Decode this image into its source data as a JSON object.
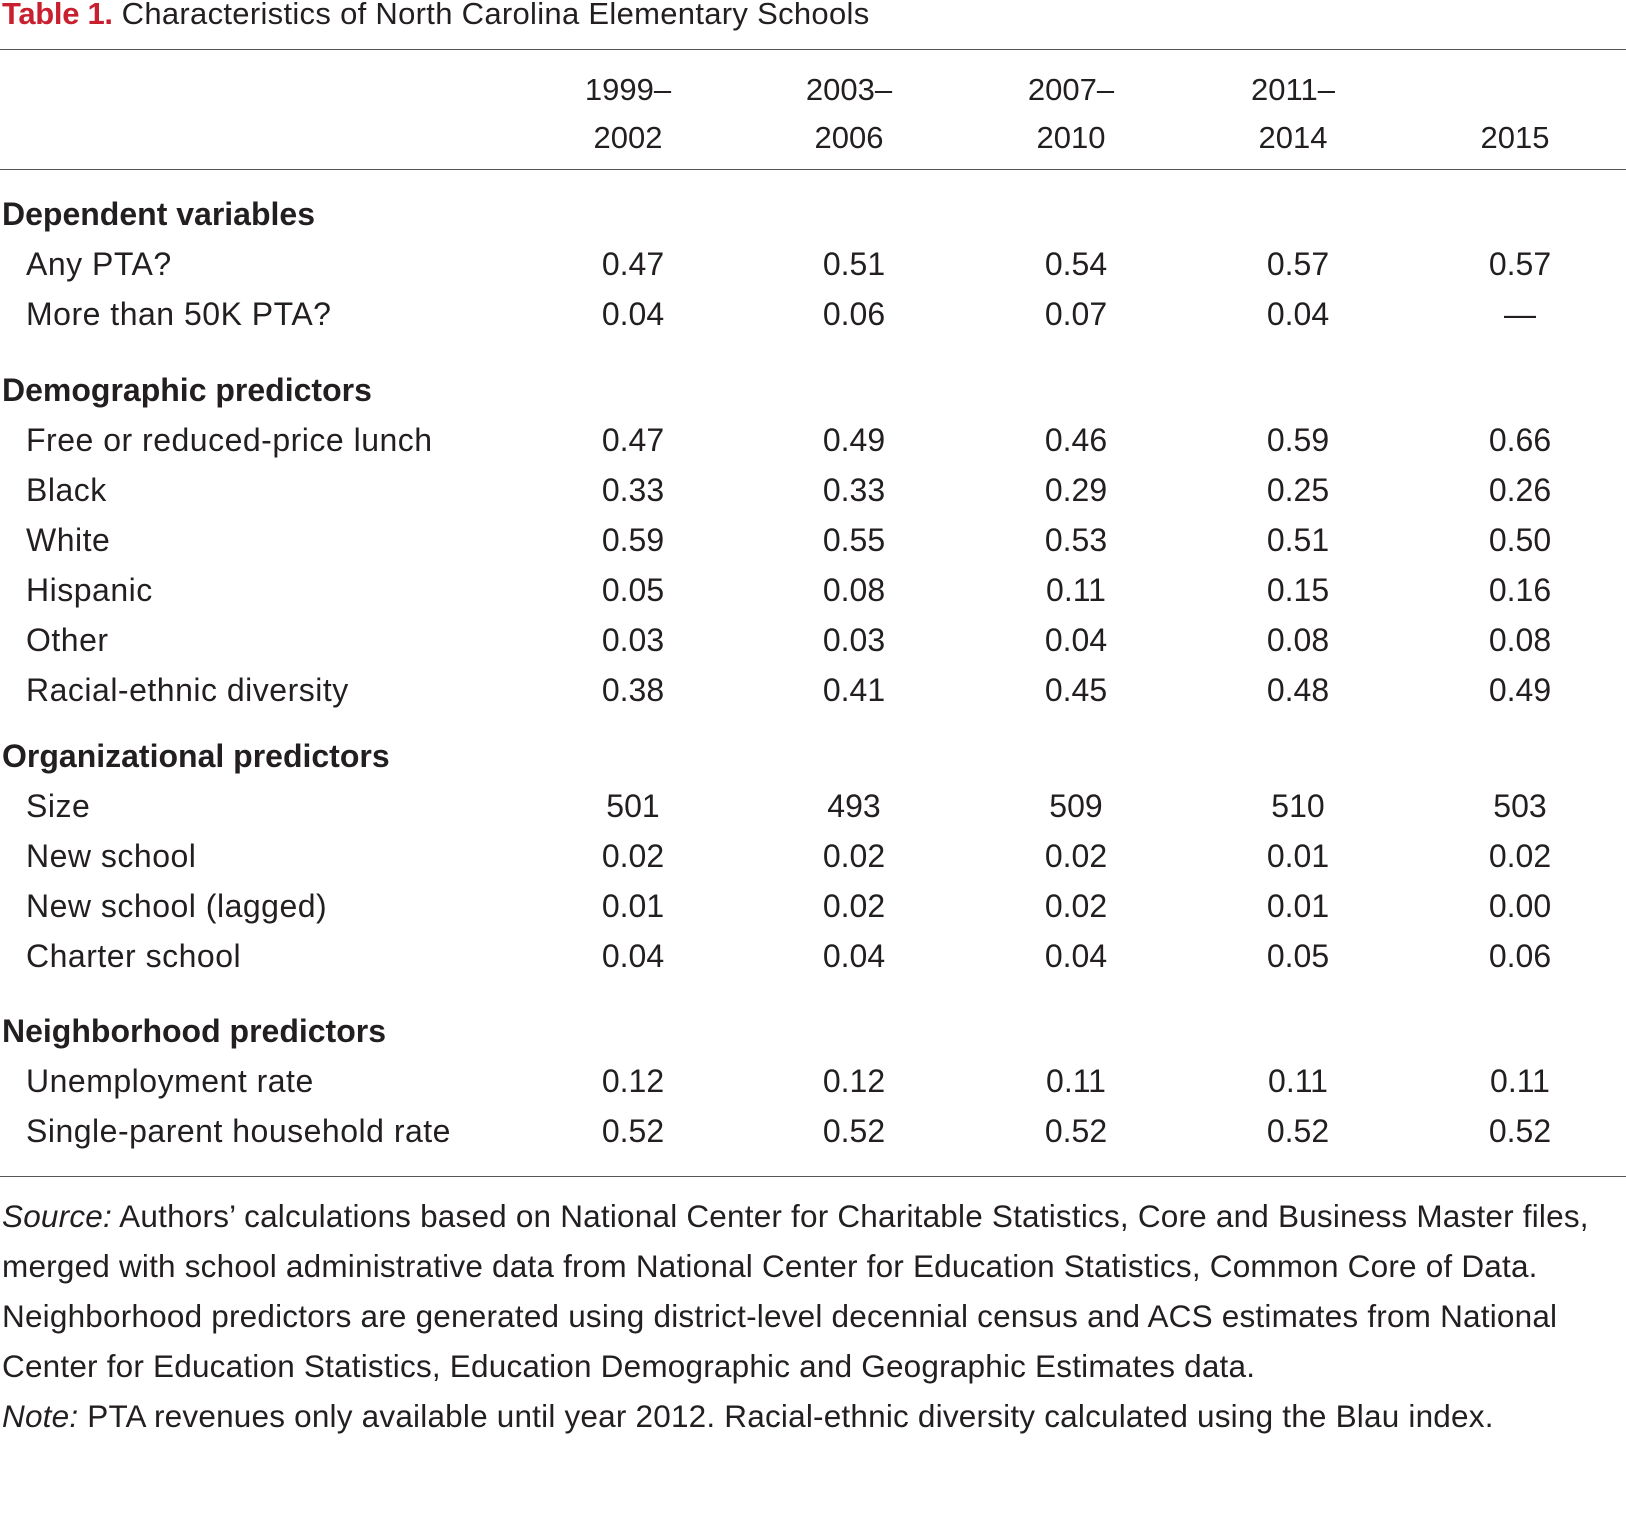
{
  "table": {
    "title_label": "Table 1.",
    "title_text": "Characteristics of North Carolina Elementary Schools",
    "columns": [
      {
        "line1": "1999–",
        "line2": "2002"
      },
      {
        "line1": "2003–",
        "line2": "2006"
      },
      {
        "line1": "2007–",
        "line2": "2010"
      },
      {
        "line1": "2011–",
        "line2": "2014"
      },
      {
        "line1": "",
        "line2": "2015"
      }
    ],
    "sections": [
      {
        "heading": "Dependent variables",
        "rows": [
          {
            "label": "Any PTA?",
            "values": [
              "0.47",
              "0.51",
              "0.54",
              "0.57",
              "0.57"
            ]
          },
          {
            "label": "More than 50K PTA?",
            "values": [
              "0.04",
              "0.06",
              "0.07",
              "0.04",
              "—"
            ]
          }
        ]
      },
      {
        "heading": "Demographic predictors",
        "rows": [
          {
            "label": "Free or reduced-price lunch",
            "values": [
              "0.47",
              "0.49",
              "0.46",
              "0.59",
              "0.66"
            ]
          },
          {
            "label": "Black",
            "values": [
              "0.33",
              "0.33",
              "0.29",
              "0.25",
              "0.26"
            ]
          },
          {
            "label": "White",
            "values": [
              "0.59",
              "0.55",
              "0.53",
              "0.51",
              "0.50"
            ]
          },
          {
            "label": "Hispanic",
            "values": [
              "0.05",
              "0.08",
              "0.11",
              "0.15",
              "0.16"
            ]
          },
          {
            "label": "Other",
            "values": [
              "0.03",
              "0.03",
              "0.04",
              "0.08",
              "0.08"
            ]
          },
          {
            "label": "Racial-ethnic diversity",
            "values": [
              "0.38",
              "0.41",
              "0.45",
              "0.48",
              "0.49"
            ]
          }
        ]
      },
      {
        "heading": "Organizational predictors",
        "rows": [
          {
            "label": "Size",
            "values": [
              "501",
              "493",
              "509",
              "510",
              "503"
            ]
          },
          {
            "label": "New school",
            "values": [
              "0.02",
              "0.02",
              "0.02",
              "0.01",
              "0.02"
            ]
          },
          {
            "label": "New school (lagged)",
            "values": [
              "0.01",
              "0.02",
              "0.02",
              "0.01",
              "0.00"
            ]
          },
          {
            "label": "Charter school",
            "values": [
              "0.04",
              "0.04",
              "0.04",
              "0.05",
              "0.06"
            ]
          }
        ]
      },
      {
        "heading": "Neighborhood predictors",
        "rows": [
          {
            "label": "Unemployment rate",
            "values": [
              "0.12",
              "0.12",
              "0.11",
              "0.11",
              "0.11"
            ]
          },
          {
            "label": "Single-parent household rate",
            "values": [
              "0.52",
              "0.52",
              "0.52",
              "0.52",
              "0.52"
            ]
          }
        ]
      }
    ],
    "source_label": "Source:",
    "source_text": " Authors’ calculations based on National Center for Charitable Statistics, Core and Business Master files, merged with school administrative data from National Center for Education Statistics, Common Core of Data. Neighborhood predictors are generated using district-level decennial census and ACS estimates from National Center for Education Statistics, Education Demographic and Geographic Estimates data.",
    "note_label": "Note:",
    "note_text": " PTA revenues only available until year 2012. Racial-ethnic diversity calculated using the Blau index."
  },
  "colors": {
    "title_label": "#c8202f",
    "text": "#231f20",
    "rule": "#555555"
  }
}
